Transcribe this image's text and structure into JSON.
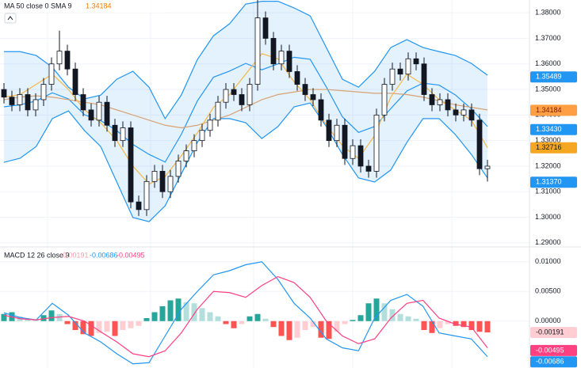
{
  "chart_data": [
    {
      "type": "candlestick",
      "title": "MA 50 close 0 SMA 9",
      "ylim": [
        1.2884,
        1.385
      ],
      "yticks": [
        {
          "value": 1.38,
          "label": "1.38000"
        },
        {
          "value": 1.37,
          "label": "1.37000"
        },
        {
          "value": 1.36,
          "label": "1.36000"
        },
        {
          "value": 1.35,
          "label": "1.35000"
        },
        {
          "value": 1.34,
          "label": "1.34000"
        },
        {
          "value": 1.33,
          "label": "1.33000"
        },
        {
          "value": 1.32,
          "label": "1.32000"
        },
        {
          "value": 1.31,
          "label": "1.31000"
        },
        {
          "value": 1.3,
          "label": "1.30000"
        },
        {
          "value": 1.29,
          "label": "1.29000"
        }
      ],
      "grid": true,
      "open": [
        1.35,
        1.347,
        1.344,
        1.348,
        1.342,
        1.346,
        1.352,
        1.36,
        1.365,
        1.358,
        1.348,
        1.342,
        1.338,
        1.345,
        1.336,
        1.33,
        1.335,
        1.306,
        1.303,
        1.314,
        1.318,
        1.31,
        1.316,
        1.322,
        1.326,
        1.33,
        1.334,
        1.338,
        1.345,
        1.35,
        1.348,
        1.344,
        1.352,
        1.378,
        1.37,
        1.36,
        1.365,
        1.357,
        1.352,
        1.348,
        1.346,
        1.338,
        1.33,
        1.336,
        1.323,
        1.328,
        1.32,
        1.318,
        1.34,
        1.352,
        1.358,
        1.356,
        1.362,
        1.36,
        1.348,
        1.344,
        1.346,
        1.342,
        1.34,
        1.342,
        1.338,
        1.319
      ],
      "high": [
        1.3525,
        1.3495,
        1.3505,
        1.3505,
        1.3485,
        1.3545,
        1.3625,
        1.373,
        1.3675,
        1.3605,
        1.3505,
        1.3445,
        1.3475,
        1.3475,
        1.3385,
        1.3375,
        1.3375,
        1.3085,
        1.3165,
        1.3205,
        1.3205,
        1.3185,
        1.3245,
        1.3285,
        1.3325,
        1.3365,
        1.3405,
        1.3475,
        1.3525,
        1.3525,
        1.3505,
        1.3545,
        1.385,
        1.3805,
        1.3725,
        1.3675,
        1.3675,
        1.3595,
        1.3545,
        1.3505,
        1.3485,
        1.3405,
        1.3385,
        1.3385,
        1.3305,
        1.3305,
        1.3225,
        1.3425,
        1.3545,
        1.3605,
        1.3605,
        1.3645,
        1.3645,
        1.3625,
        1.3505,
        1.3485,
        1.3485,
        1.3445,
        1.3445,
        1.3445,
        1.3405,
        1.3225
      ],
      "low": [
        1.3445,
        1.3415,
        1.3415,
        1.3395,
        1.3395,
        1.3435,
        1.3495,
        1.3575,
        1.3555,
        1.3455,
        1.3395,
        1.3355,
        1.3355,
        1.3335,
        1.3275,
        1.3275,
        1.3035,
        1.3005,
        1.3005,
        1.3115,
        1.3075,
        1.3075,
        1.3135,
        1.3195,
        1.3235,
        1.3275,
        1.3315,
        1.3355,
        1.3425,
        1.3455,
        1.3415,
        1.3415,
        1.3495,
        1.3675,
        1.3575,
        1.3575,
        1.3545,
        1.3495,
        1.3455,
        1.3435,
        1.3355,
        1.3275,
        1.3275,
        1.3205,
        1.3205,
        1.3175,
        1.3155,
        1.3155,
        1.3375,
        1.3495,
        1.3535,
        1.3535,
        1.3575,
        1.3455,
        1.3415,
        1.3415,
        1.3395,
        1.3375,
        1.3375,
        1.3355,
        1.3165,
        1.314
      ],
      "close": [
        1.347,
        1.344,
        1.348,
        1.342,
        1.346,
        1.352,
        1.36,
        1.365,
        1.358,
        1.348,
        1.342,
        1.338,
        1.345,
        1.336,
        1.33,
        1.335,
        1.306,
        1.303,
        1.314,
        1.318,
        1.31,
        1.316,
        1.322,
        1.326,
        1.33,
        1.334,
        1.338,
        1.345,
        1.35,
        1.348,
        1.344,
        1.352,
        1.378,
        1.37,
        1.36,
        1.365,
        1.357,
        1.352,
        1.348,
        1.346,
        1.338,
        1.33,
        1.336,
        1.323,
        1.328,
        1.32,
        1.318,
        1.34,
        1.352,
        1.358,
        1.356,
        1.362,
        1.36,
        1.348,
        1.344,
        1.346,
        1.342,
        1.34,
        1.342,
        1.338,
        1.319,
        1.32
      ],
      "band_fill": "rgba(33,150,243,0.12)",
      "lines": [
        {
          "color": "#2196f3",
          "values": [
            1.3648,
            1.3648,
            1.3633,
            1.3587,
            1.3509,
            1.3463,
            1.3478,
            1.354,
            1.3571,
            1.3509,
            1.3386,
            1.3478,
            1.3617,
            1.371,
            1.3757,
            1.3834,
            1.3845,
            1.3845,
            1.3819,
            1.3788,
            1.3664,
            1.354,
            1.3509,
            1.3571,
            1.3664,
            1.3695,
            1.3664,
            1.3648,
            1.3633,
            1.3602,
            1.3556
          ]
        },
        {
          "color": "#2196f3",
          "values": [
            1.3215,
            1.3231,
            1.3277,
            1.3386,
            1.3416,
            1.3339,
            1.3277,
            1.3138,
            1.2999,
            1.2983,
            1.3045,
            1.3169,
            1.3293,
            1.3386,
            1.3386,
            1.337,
            1.3308,
            1.3355,
            1.3432,
            1.3447,
            1.3355,
            1.3246,
            1.3154,
            1.3138,
            1.3185,
            1.3293,
            1.3386,
            1.3386,
            1.3324,
            1.3246,
            1.3154
          ]
        },
        {
          "color": "#2196f3",
          "values": [
            1.3432,
            1.344,
            1.3455,
            1.3487,
            1.3463,
            1.3401,
            1.3378,
            1.3339,
            1.3285,
            1.3246,
            1.3216,
            1.3324,
            1.3455,
            1.3548,
            1.3572,
            1.3602,
            1.3577,
            1.36,
            1.3626,
            1.3618,
            1.351,
            1.3393,
            1.3332,
            1.3355,
            1.3425,
            1.3494,
            1.3525,
            1.3517,
            1.3479,
            1.3424,
            1.3355
          ]
        },
        {
          "color": "#d9a273",
          "values": [
            1.346,
            1.347,
            1.3475,
            1.347,
            1.346,
            1.345,
            1.344,
            1.342,
            1.34,
            1.338,
            1.336,
            1.335,
            1.336,
            1.338,
            1.34,
            1.343,
            1.346,
            1.348,
            1.349,
            1.35,
            1.35,
            1.3495,
            1.349,
            1.3485,
            1.3485,
            1.348,
            1.347,
            1.3455,
            1.344,
            1.343,
            1.342
          ]
        },
        {
          "color": "#f5b84a",
          "values": [
            1.347,
            1.348,
            1.352,
            1.356,
            1.35,
            1.342,
            1.337,
            1.33,
            1.32,
            1.313,
            1.316,
            1.324,
            1.333,
            1.343,
            1.348,
            1.356,
            1.364,
            1.362,
            1.353,
            1.346,
            1.336,
            1.328,
            1.323,
            1.332,
            1.347,
            1.356,
            1.352,
            1.346,
            1.342,
            1.338,
            1.3272
          ]
        }
      ],
      "markers": [
        {
          "value": 1.35489,
          "color": "#2196f3",
          "text_color": "#ffffff"
        },
        {
          "value": 1.34184,
          "color": "#ff9f43",
          "text_color": "#7a1a00"
        },
        {
          "value": 1.3343,
          "label": "1.33430",
          "color": "#2196f3",
          "text_color": "#ffffff"
        },
        {
          "value": 1.32716,
          "color": "#f5a623",
          "text_color": "#131722"
        },
        {
          "value": 1.3137,
          "label": "1.31370",
          "color": "#2196f3",
          "text_color": "#ffffff"
        }
      ]
    },
    {
      "type": "macd",
      "title": "MACD 12 26 close 9",
      "ylim": [
        -0.0079,
        0.0125
      ],
      "yticks": [
        {
          "value": 0.01,
          "label": "0.01000"
        },
        {
          "value": 0.005,
          "label": "0.00500"
        },
        {
          "value": 0,
          "label": "0.00000"
        }
      ],
      "grid": true,
      "histogram": [
        0.0012,
        0.0015,
        0.0008,
        0.0004,
        0.0003,
        0.001,
        0.0018,
        0.0012,
        -0.0005,
        -0.0015,
        -0.0022,
        -0.0025,
        -0.002,
        -0.0018,
        -0.0025,
        -0.0015,
        -0.0012,
        -0.0008,
        0.0005,
        0.0015,
        0.0025,
        0.0035,
        0.0038,
        0.0032,
        0.003,
        0.0022,
        0.0015,
        0.0008,
        -0.0005,
        -0.0012,
        -0.0005,
        0.0008,
        0.0012,
        0.0004,
        -0.001,
        -0.0025,
        -0.0032,
        -0.0028,
        -0.0015,
        -0.001,
        -0.0028,
        -0.003,
        -0.0018,
        -0.0005,
        0.0002,
        0.001,
        0.003,
        0.0038,
        0.003,
        0.002,
        0.0012,
        0.0008,
        0.0004,
        -0.0015,
        -0.002,
        -0.0012,
        -0.0005,
        -0.0008,
        -0.001,
        -0.0015,
        -0.0018,
        -0.00191
      ],
      "histogram_colors": [
        "#26a69a",
        "#b2dfdb",
        "#ff5252",
        "#ffcdd2"
      ],
      "lines": [
        {
          "color": "#2196f3",
          "values": [
            0.0014,
            0.0006,
            0.0002,
            0.003,
            0.001,
            -0.002,
            -0.0035,
            -0.0055,
            -0.0072,
            -0.007,
            -0.0025,
            0.002,
            0.005,
            0.0078,
            0.0085,
            0.0095,
            0.01,
            0.007,
            0.003,
            0.0005,
            -0.003,
            -0.0045,
            -0.005,
            0.0005,
            0.0035,
            0.0045,
            0.0025,
            -0.002,
            -0.0025,
            -0.003,
            -0.006
          ]
        },
        {
          "color": "#ff4081",
          "values": [
            0.001,
            0.0004,
            0.0002,
            0.0006,
            0.0008,
            0.0,
            -0.0018,
            -0.0035,
            -0.0055,
            -0.006,
            -0.005,
            -0.002,
            0.002,
            0.005,
            0.0048,
            0.004,
            0.006,
            0.0075,
            0.0065,
            0.004,
            0.0,
            -0.0025,
            -0.0038,
            -0.003,
            0.0005,
            0.003,
            0.0035,
            0.0005,
            -0.0005,
            -0.001,
            -0.0045
          ]
        }
      ],
      "markers": [
        {
          "value": -0.00191,
          "color": "#ffcdd2",
          "text_color": "#131722"
        },
        {
          "value": -0.00495,
          "color": "#ff4081",
          "text_color": "#ffffff"
        },
        {
          "value": -0.00686,
          "color": "#2196f3",
          "text_color": "#ffffff"
        }
      ]
    }
  ]
}
